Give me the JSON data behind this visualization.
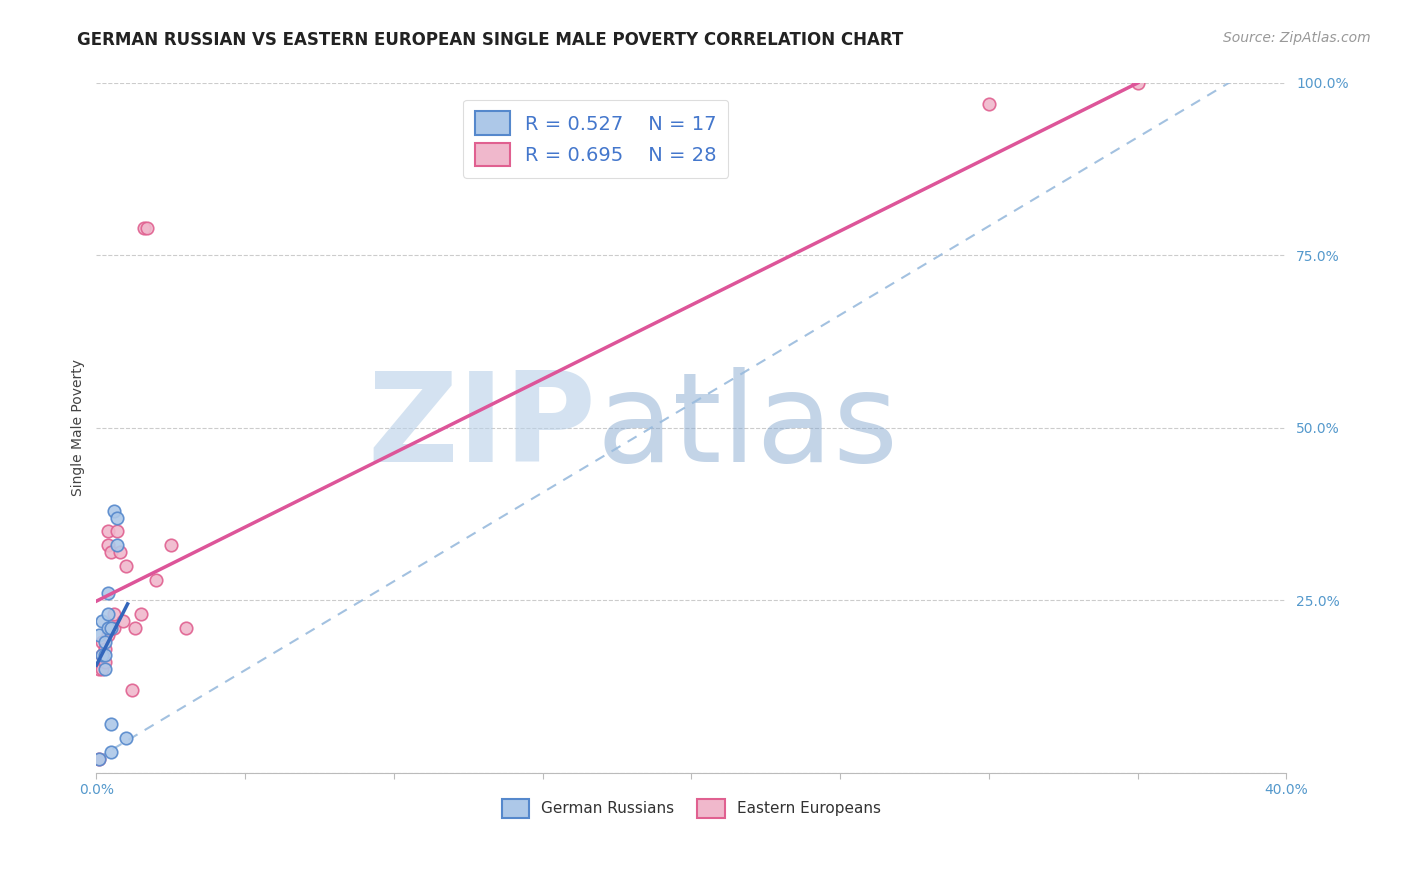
{
  "title": "GERMAN RUSSIAN VS EASTERN EUROPEAN SINGLE MALE POVERTY CORRELATION CHART",
  "source": "Source: ZipAtlas.com",
  "ylabel": "Single Male Poverty",
  "xlim": [
    0,
    0.4
  ],
  "ylim": [
    0,
    1.0
  ],
  "xticks": [
    0.0,
    0.05,
    0.1,
    0.15,
    0.2,
    0.25,
    0.3,
    0.35,
    0.4
  ],
  "yticks": [
    0.0,
    0.25,
    0.5,
    0.75,
    1.0
  ],
  "german_russian_x": [
    0.001,
    0.001,
    0.002,
    0.002,
    0.003,
    0.003,
    0.003,
    0.004,
    0.004,
    0.004,
    0.005,
    0.005,
    0.005,
    0.006,
    0.007,
    0.007,
    0.01
  ],
  "german_russian_y": [
    0.02,
    0.2,
    0.17,
    0.22,
    0.15,
    0.17,
    0.19,
    0.21,
    0.23,
    0.26,
    0.03,
    0.07,
    0.21,
    0.38,
    0.33,
    0.37,
    0.05
  ],
  "eastern_european_x": [
    0.001,
    0.001,
    0.002,
    0.002,
    0.002,
    0.003,
    0.003,
    0.004,
    0.004,
    0.004,
    0.005,
    0.005,
    0.006,
    0.006,
    0.007,
    0.008,
    0.009,
    0.01,
    0.012,
    0.013,
    0.015,
    0.016,
    0.017,
    0.02,
    0.025,
    0.03,
    0.35,
    0.3
  ],
  "eastern_european_y": [
    0.02,
    0.15,
    0.15,
    0.17,
    0.19,
    0.16,
    0.18,
    0.2,
    0.33,
    0.35,
    0.21,
    0.32,
    0.21,
    0.23,
    0.35,
    0.32,
    0.22,
    0.3,
    0.12,
    0.21,
    0.23,
    0.79,
    0.79,
    0.28,
    0.33,
    0.21,
    1.0,
    0.97
  ],
  "german_russian_face_color": "#adc8e8",
  "eastern_european_face_color": "#f0b8cc",
  "german_russian_edge_color": "#5588cc",
  "eastern_european_edge_color": "#e06090",
  "german_russian_line_color": "#3366bb",
  "eastern_european_line_color": "#dd5599",
  "dashed_line_color": "#99bbdd",
  "legend_R_german": "R = 0.527",
  "legend_N_german": "N = 17",
  "legend_R_eastern": "R = 0.695",
  "legend_N_eastern": "N = 28",
  "legend_label_german": "German Russians",
  "legend_label_eastern": "Eastern Europeans",
  "watermark_zip": "ZIP",
  "watermark_atlas": "atlas",
  "watermark_color_zip": "#b8d0e8",
  "watermark_color_atlas": "#88aad0",
  "background_color": "#ffffff",
  "grid_color": "#cccccc",
  "title_fontsize": 12,
  "source_fontsize": 10,
  "axis_label_fontsize": 10,
  "tick_fontsize": 10,
  "legend_fontsize": 14,
  "marker_size": 9,
  "marker_linewidth": 1.2
}
